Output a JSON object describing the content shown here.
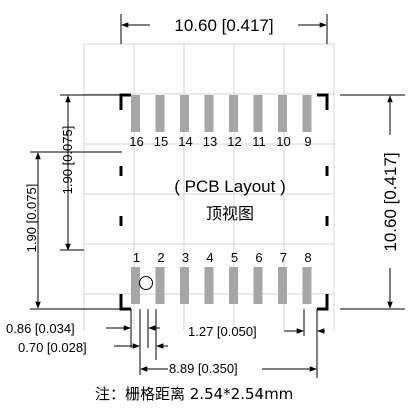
{
  "diagram": {
    "top_width_label": "10.60 [0.417]",
    "right_height_label": "10.60 [0.417]",
    "left_outer_label": "1.90 [0.075]",
    "left_inner_label": "1.90 [0.075]",
    "title": "( PCB Layout )",
    "subtitle": "顶视图",
    "pad_width_label": "0.86 [0.034]",
    "pad_gap_label": "0.70 [0.028]",
    "pitch_label": "1.27 [0.050]",
    "span_label": "8.89 [0.350]",
    "note": "注：栅格距离 2.54*2.54mm",
    "top_pins": [
      "16",
      "15",
      "14",
      "13",
      "12",
      "11",
      "10",
      "9"
    ],
    "bottom_pins": [
      "1",
      "2",
      "3",
      "4",
      "5",
      "6",
      "7",
      "8"
    ],
    "colors": {
      "pad": "#a6a6a6",
      "outline": "#000000",
      "grid": "#d4d4d4"
    }
  }
}
